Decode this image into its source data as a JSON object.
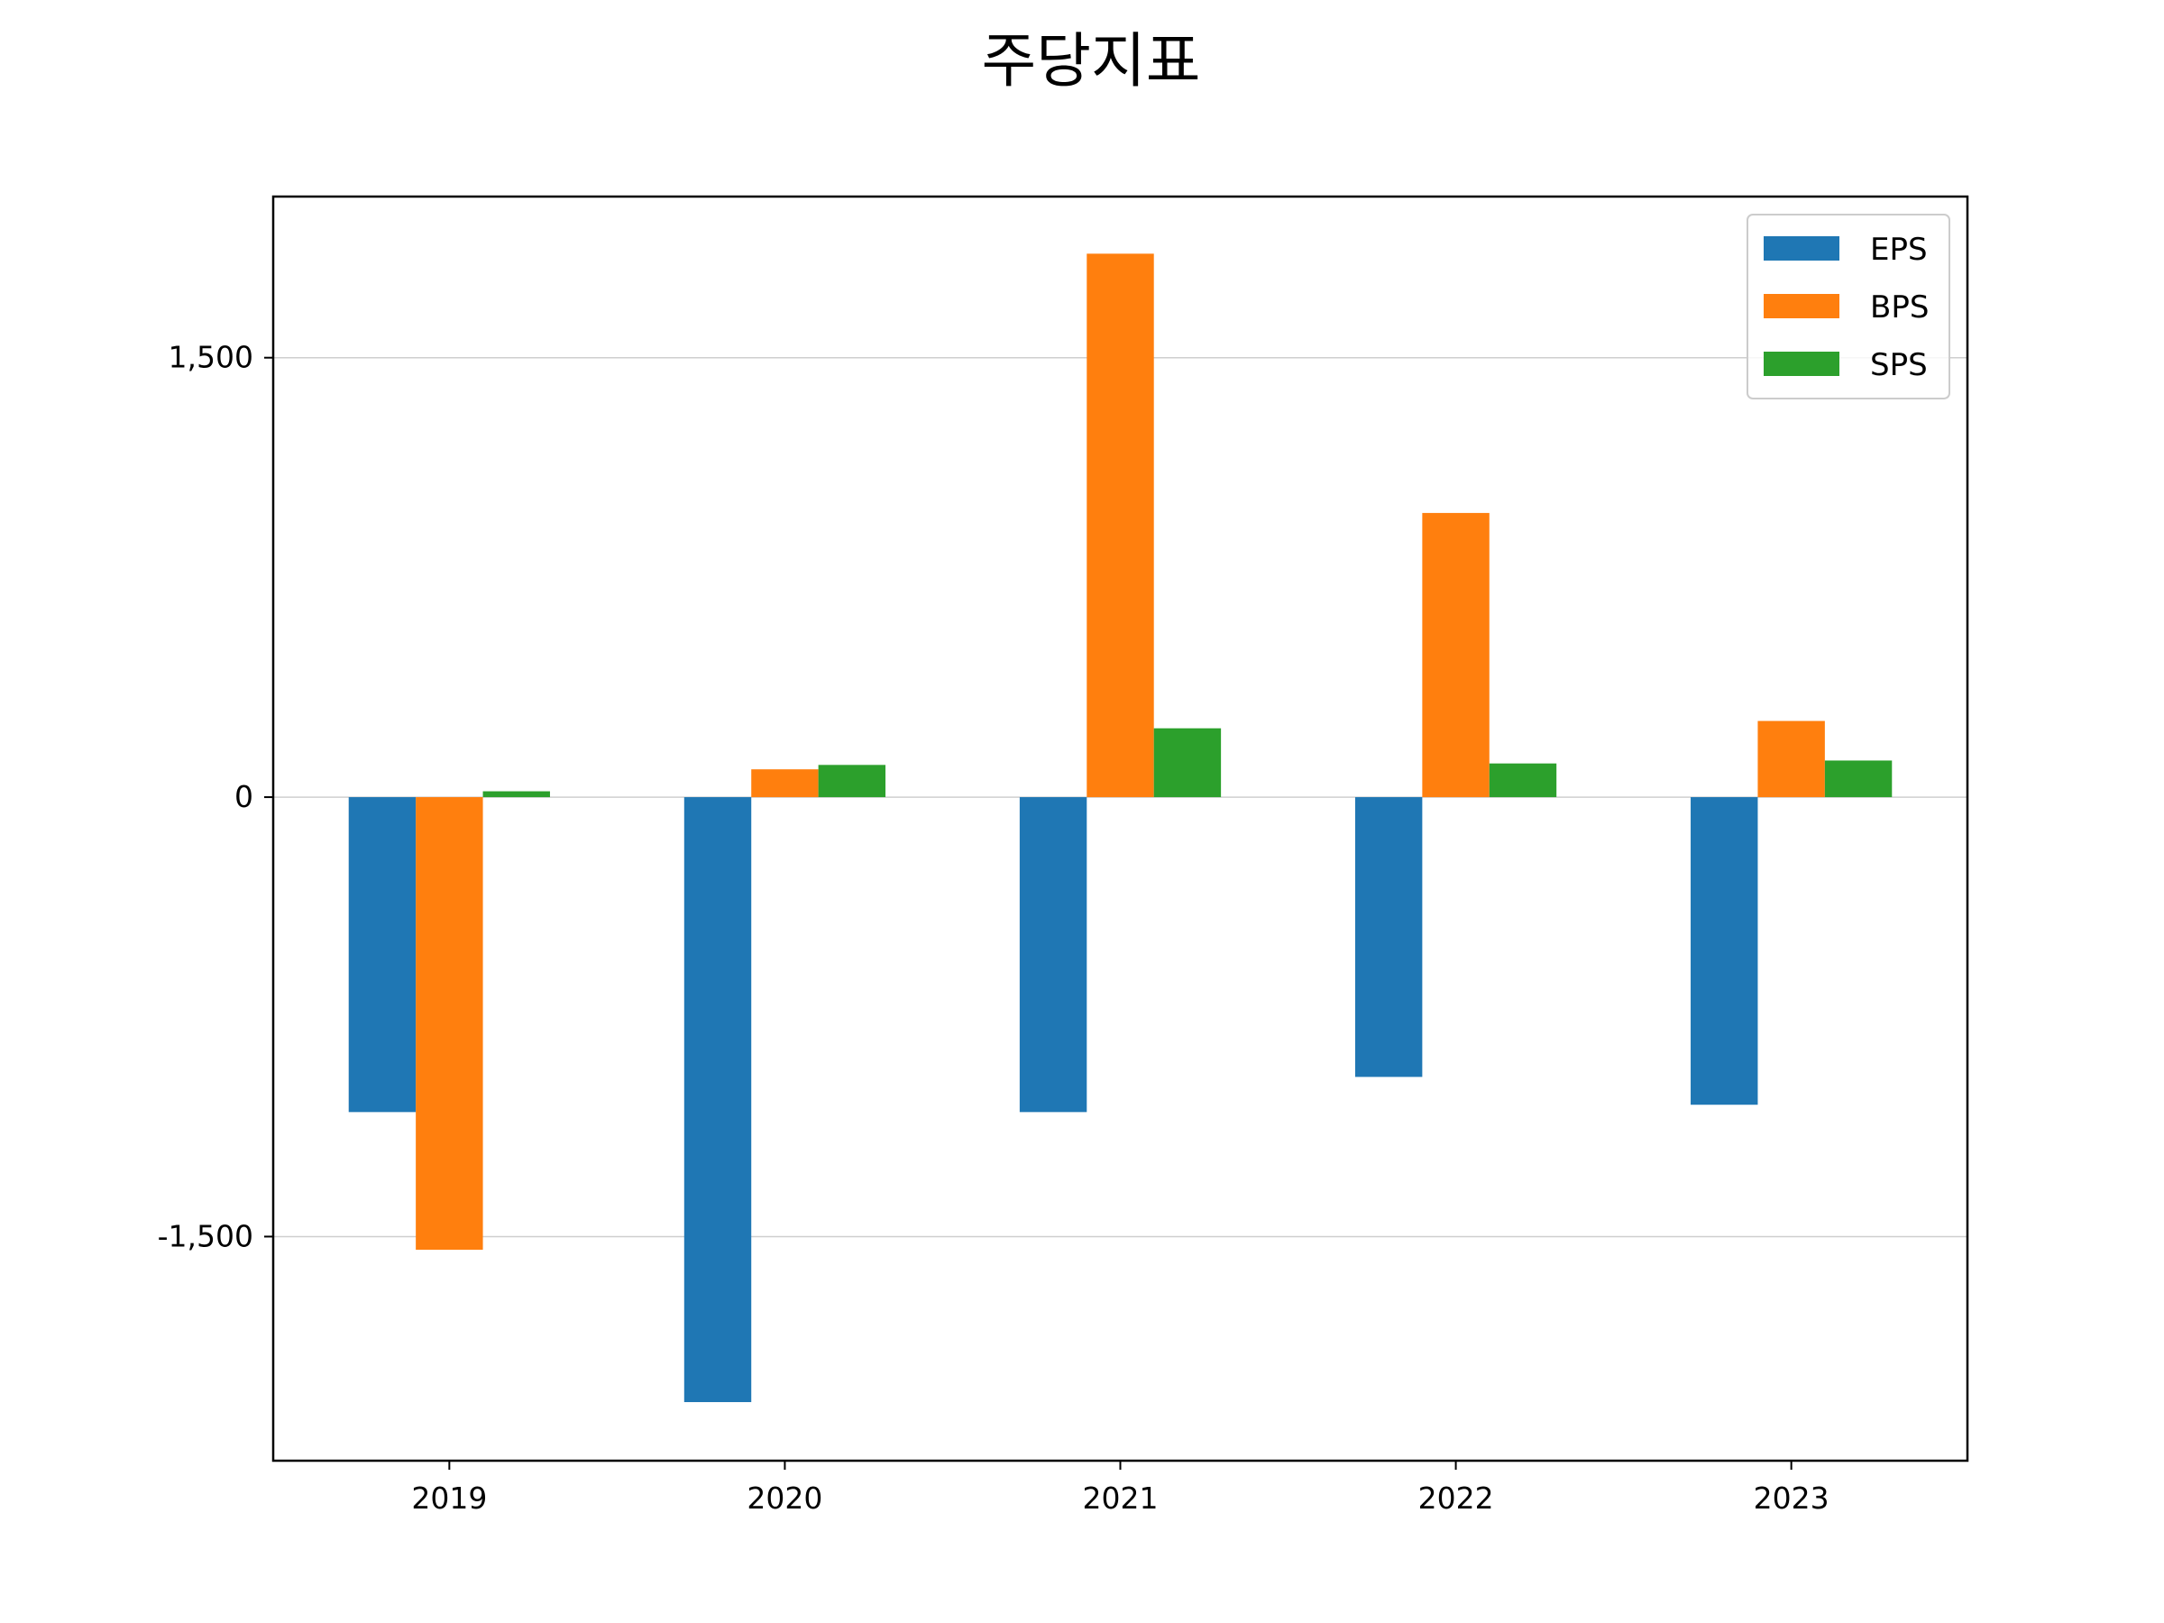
{
  "chart_data": {
    "type": "bar",
    "title": "주당지표",
    "xlabel": "",
    "ylabel": "",
    "categories": [
      "2019",
      "2020",
      "2021",
      "2022",
      "2023"
    ],
    "series": [
      {
        "name": "EPS",
        "color": "#1f77b4",
        "values": [
          -1075,
          -2065,
          -1075,
          -955,
          -1050
        ]
      },
      {
        "name": "BPS",
        "color": "#ff7f0e",
        "values": [
          -1545,
          95,
          1855,
          970,
          260
        ]
      },
      {
        "name": "SPS",
        "color": "#2ca02c",
        "values": [
          20,
          110,
          235,
          115,
          125
        ]
      }
    ],
    "yticks": [
      -1500,
      0,
      1500
    ],
    "ytick_labels": [
      "-1,500",
      "0",
      "1,500"
    ],
    "ylim": [
      -2265,
      2050
    ],
    "grid": "y",
    "legend_position": "top-right"
  }
}
